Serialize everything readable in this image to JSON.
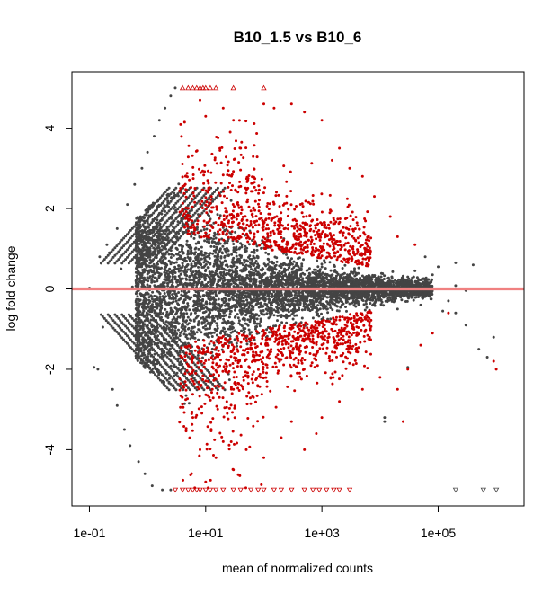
{
  "chart_data": {
    "type": "scatter",
    "title": "B10_1.5 vs B10_6",
    "xlabel": "mean of normalized counts",
    "ylabel": "log fold change",
    "x_scale": "log10",
    "xlim": [
      0.05,
      3000000
    ],
    "ylim": [
      -5.4,
      5.4
    ],
    "x_ticks": [
      0.1,
      10,
      1000,
      100000
    ],
    "x_tick_labels": [
      "1e-01",
      "1e+01",
      "1e+03",
      "1e+05"
    ],
    "y_ticks": [
      -4,
      -2,
      0,
      2,
      4
    ],
    "y_tick_labels": [
      "-4",
      "-2",
      "0",
      "2",
      "4"
    ],
    "grid": false,
    "reference_line": {
      "y": 0,
      "color": "#f08080"
    },
    "colors": {
      "non_significant": "#444444",
      "significant": "#cc0000"
    },
    "series": [
      {
        "kind": "non-significant genes (dark grey dots)",
        "points": [
          [
            0.1,
            0
          ],
          [
            0.1,
            0.02
          ],
          [
            0.12,
            -1.95
          ],
          [
            0.14,
            -2.0
          ],
          [
            0.15,
            0.8
          ],
          [
            0.17,
            -0.95
          ],
          [
            0.2,
            1.1
          ],
          [
            0.22,
            0.9
          ],
          [
            0.25,
            -2.5
          ],
          [
            0.3,
            1.5
          ],
          [
            0.3,
            -2.9
          ],
          [
            0.35,
            0.5
          ],
          [
            0.4,
            -3.5
          ],
          [
            0.45,
            2.1
          ],
          [
            0.5,
            -3.9
          ],
          [
            0.55,
            0.05
          ],
          [
            0.6,
            2.6
          ],
          [
            0.7,
            -4.3
          ],
          [
            0.8,
            3.0
          ],
          [
            0.9,
            -4.6
          ],
          [
            1.0,
            3.4
          ],
          [
            1.2,
            -4.9
          ],
          [
            1.3,
            3.8
          ],
          [
            1.6,
            4.2
          ],
          [
            1.8,
            -5.0
          ],
          [
            2.0,
            4.5
          ],
          [
            2.5,
            4.8
          ],
          [
            2.5,
            -5.0
          ],
          [
            3.0,
            5.0
          ],
          [
            200000,
            0.08
          ],
          [
            300000,
            -0.04
          ],
          [
            400000,
            0.0
          ],
          [
            100000,
            0.55
          ],
          [
            200000,
            0.65
          ],
          [
            150000,
            -0.3
          ],
          [
            120000,
            -0.55
          ],
          [
            80000,
            0.35
          ],
          [
            50000,
            -0.4
          ],
          [
            60000,
            0.2
          ],
          [
            30000,
            0.3
          ],
          [
            30000,
            -0.2
          ],
          [
            25000,
            0.1
          ],
          [
            15000,
            -0.15
          ],
          [
            40000,
            0.45
          ],
          [
            20000,
            -0.5
          ],
          [
            70000,
            -0.1
          ],
          [
            12000,
            -3.2
          ],
          [
            12000,
            -3.3
          ],
          [
            30000,
            -1.95
          ],
          [
            60000,
            0.8
          ],
          [
            200000,
            -0.6
          ],
          [
            400000,
            0.6
          ],
          [
            300000,
            -0.9
          ],
          [
            500000,
            -1.5
          ],
          [
            900000,
            -1.2
          ],
          [
            700000,
            -1.7
          ]
        ]
      },
      {
        "kind": "significant genes (red dots)",
        "points": [
          [
            8,
            4.7
          ],
          [
            10,
            4.3
          ],
          [
            20,
            4.5
          ],
          [
            30,
            4.2
          ],
          [
            40,
            3.5
          ],
          [
            100,
            4.6
          ],
          [
            150,
            4.5
          ],
          [
            300,
            4.6
          ],
          [
            500,
            4.4
          ],
          [
            1000,
            4.2
          ],
          [
            2000,
            3.5
          ],
          [
            1500,
            3.2
          ],
          [
            3000,
            3.0
          ],
          [
            5000,
            2.8
          ],
          [
            8000,
            2.3
          ],
          [
            15000,
            1.8
          ],
          [
            20000,
            1.3
          ],
          [
            40000,
            1.1
          ],
          [
            6,
            -3.2
          ],
          [
            8,
            -4.0
          ],
          [
            10,
            -4.8
          ],
          [
            15,
            -4.2
          ],
          [
            20,
            -3.8
          ],
          [
            30,
            -4.5
          ],
          [
            50,
            -4.0
          ],
          [
            100,
            -4.2
          ],
          [
            200,
            -3.7
          ],
          [
            300,
            -3.3
          ],
          [
            500,
            -4.0
          ],
          [
            800,
            -3.6
          ],
          [
            1000,
            -3.2
          ],
          [
            2000,
            -2.8
          ],
          [
            5000,
            -2.5
          ],
          [
            10000,
            -2.2
          ],
          [
            20000,
            -2.5
          ],
          [
            25000,
            -3.3
          ],
          [
            30000,
            -2.0
          ],
          [
            50000,
            -1.4
          ],
          [
            80000,
            -1.1
          ],
          [
            150000,
            -0.6
          ],
          [
            900000,
            -1.8
          ],
          [
            1000000,
            -2.0
          ]
        ]
      },
      {
        "kind": "out-of-range genes (triangles at plot limit)",
        "points": [
          [
            4,
            5
          ],
          [
            5,
            5
          ],
          [
            6,
            5
          ],
          [
            7,
            5
          ],
          [
            8,
            5
          ],
          [
            9,
            5
          ],
          [
            10,
            5
          ],
          [
            12,
            5
          ],
          [
            15,
            5
          ],
          [
            30,
            5
          ],
          [
            100,
            5
          ],
          [
            3,
            -5
          ],
          [
            4,
            -5
          ],
          [
            5,
            -5
          ],
          [
            6,
            -5
          ],
          [
            7,
            -5
          ],
          [
            8,
            -5
          ],
          [
            10,
            -5
          ],
          [
            12,
            -5
          ],
          [
            15,
            -5
          ],
          [
            20,
            -5
          ],
          [
            30,
            -5
          ],
          [
            40,
            -5
          ],
          [
            60,
            -5
          ],
          [
            80,
            -5
          ],
          [
            100,
            -5
          ],
          [
            150,
            -5
          ],
          [
            200,
            -5
          ],
          [
            300,
            -5
          ],
          [
            500,
            -5
          ],
          [
            700,
            -5
          ],
          [
            900,
            -5
          ],
          [
            1200,
            -5
          ],
          [
            1600,
            -5
          ],
          [
            2000,
            -5
          ],
          [
            3000,
            -5
          ],
          [
            200000,
            -5
          ],
          [
            600000,
            -5
          ],
          [
            1000000,
            -5
          ]
        ]
      }
    ]
  }
}
